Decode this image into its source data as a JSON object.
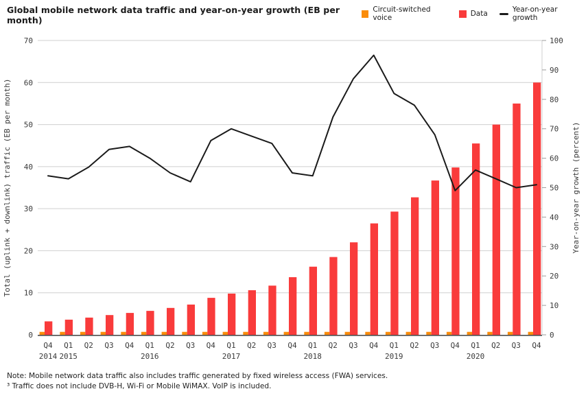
{
  "header": {
    "title": "Global mobile network data traffic and year-on-year growth (EB per month)"
  },
  "chart_data": {
    "type": "bar+line",
    "title": "Global mobile network data traffic and year-on-year growth (EB per month)",
    "categories": [
      "Q4",
      "Q1",
      "Q2",
      "Q3",
      "Q4",
      "Q1",
      "Q2",
      "Q3",
      "Q4",
      "Q1",
      "Q2",
      "Q3",
      "Q4",
      "Q1",
      "Q2",
      "Q3",
      "Q4",
      "Q1",
      "Q2",
      "Q3",
      "Q4",
      "Q1",
      "Q2",
      "Q3",
      "Q4"
    ],
    "year_labels": [
      {
        "index": 0,
        "label": "2014"
      },
      {
        "index": 1,
        "label": "2015"
      },
      {
        "index": 5,
        "label": "2016"
      },
      {
        "index": 9,
        "label": "2017"
      },
      {
        "index": 13,
        "label": "2018"
      },
      {
        "index": 17,
        "label": "2019"
      },
      {
        "index": 21,
        "label": "2020"
      }
    ],
    "series": [
      {
        "name": "Circuit-switched voice",
        "type": "bar",
        "color": "#FA8C0A",
        "axis": "left",
        "values": [
          0.7,
          0.7,
          0.7,
          0.7,
          0.7,
          0.7,
          0.7,
          0.7,
          0.7,
          0.7,
          0.7,
          0.7,
          0.7,
          0.7,
          0.7,
          0.7,
          0.7,
          0.7,
          0.7,
          0.7,
          0.7,
          0.7,
          0.7,
          0.7,
          0.7
        ]
      },
      {
        "name": "Data",
        "type": "bar",
        "color": "#F93B3B",
        "axis": "left",
        "values": [
          3.2,
          3.6,
          4.1,
          4.7,
          5.2,
          5.7,
          6.4,
          7.2,
          8.8,
          9.8,
          10.6,
          11.7,
          13.7,
          16.2,
          18.5,
          22,
          26.5,
          29.3,
          32.7,
          36.7,
          39.8,
          45.5,
          50,
          55,
          60
        ]
      },
      {
        "name": "Year-on-year growth",
        "type": "line",
        "color": "#1A1A1A",
        "axis": "right",
        "values": [
          54,
          53,
          57,
          63,
          64,
          60,
          55,
          52,
          66,
          70,
          67.5,
          65,
          55,
          54,
          74,
          87,
          95,
          82,
          78,
          68,
          49,
          56,
          53,
          50,
          51
        ]
      }
    ],
    "left_axis": {
      "label": "Total (uplink + downlink) traffic (EB per month)",
      "min": 0,
      "max": 70,
      "step": 10,
      "ticks": [
        0,
        10,
        20,
        30,
        40,
        50,
        60,
        70
      ]
    },
    "right_axis": {
      "label": "Year-on-year growth (percent)",
      "min": 0,
      "max": 100,
      "step": 10,
      "ticks": [
        0,
        10,
        20,
        30,
        40,
        50,
        60,
        70,
        80,
        90,
        100
      ]
    },
    "grid": true,
    "legend_position": "top-right",
    "colors": {
      "grid": "#CFCFCF",
      "baseline": "#4D4D4D",
      "tick_text": "#3A3A3A"
    }
  },
  "note": {
    "line1": "Note: Mobile network data traffic also includes traffic generated by fixed wireless access (FWA) services.",
    "line2": "³ Traffic does not include DVB-H, Wi-Fi or Mobile WiMAX. VoIP is included."
  }
}
